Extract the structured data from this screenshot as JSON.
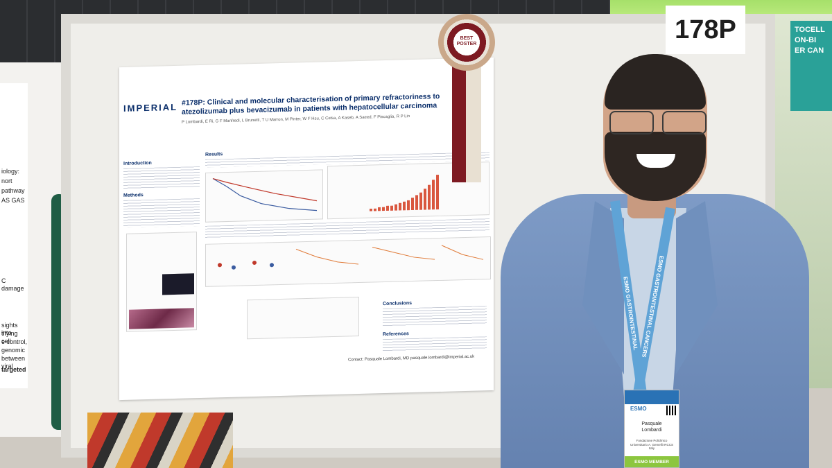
{
  "board_number": "178P",
  "rosette": {
    "line1": "BEST",
    "line2": "POSTER"
  },
  "poster": {
    "institution_logo": "IMPERIAL",
    "title": "#178P: Clinical and molecular characterisation of primary refractoriness to atezolizumab plus bevacizumab in patients with hepatocellular carcinoma",
    "authors": "P Lombardi, E Ri, G F Manfredi, L Brunetti, T U Marron, M Pinter, W F Hsu, C Celsa, A Kaseb, A Saeed, F Piscaglia, R P Lin",
    "sections": {
      "introduction": "Introduction",
      "methods": "Methods",
      "results": "Results",
      "conclusions": "Conclusions",
      "references": "References"
    },
    "contact": "Contact: Pasquale Lombardi, MD  pasquale.lombardi@imperial.ac.uk",
    "bar_values": [
      2,
      2,
      3,
      3,
      4,
      4,
      5,
      6,
      7,
      8,
      10,
      12,
      14,
      17,
      20,
      24,
      28
    ]
  },
  "neighbour_poster": {
    "lines": [
      "iology:",
      "nort",
      "pathway",
      "AS GAS",
      "C damage",
      "sights into",
      "tifying cell",
      "e control,",
      "genomic",
      "between viral",
      "targeted"
    ]
  },
  "neighbour_sign": "TOCELL\nON-BI\nER CAN",
  "lanyard": {
    "left": "ESMO GASTROINTESTINAL",
    "right": "ESMO GASTROINTESTINAL CANCERS"
  },
  "badge": {
    "logo": "ESMO",
    "first_name": "Pasquale",
    "last_name": "Lombardi",
    "affiliation": "Fondazione Policlinico Universitario A. Gemelli IRCCS Italy",
    "membership": "ESMO MEMBER"
  },
  "colors": {
    "ribbon": "#7d1a22",
    "navy": "#0b2f6b",
    "jacket": "#6f8db9",
    "lanyard": "#5fa3d6"
  }
}
